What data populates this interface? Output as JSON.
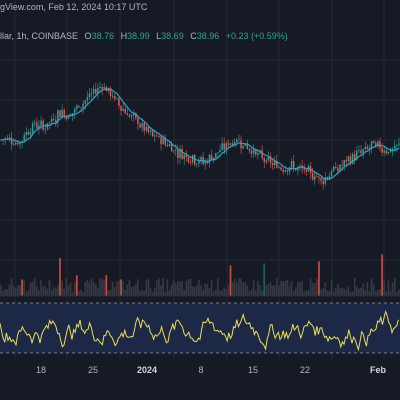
{
  "header": {
    "watermark_text": "gView.com, Feb 12, 2024 10:17 UTC",
    "symbol_text": "llar, 1h, COINBASE"
  },
  "legend": {
    "o_label": "O",
    "o_value": "38.76",
    "h_label": "H",
    "h_value": "38.99",
    "l_label": "L",
    "l_value": "38.69",
    "c_label": "C",
    "c_value": "38.96",
    "change": "+0.23 (+0.59%)"
  },
  "xaxis": {
    "ticks": [
      "18",
      "25",
      "2024",
      "8",
      "15",
      "22",
      "Feb"
    ]
  },
  "colors": {
    "background": "#161a25",
    "grid": "#232834",
    "up": "#26a69a",
    "down": "#ef5350",
    "ma_line": "#2ca4c8",
    "volume_bar": "#3a3f4a",
    "volume_spike": "#ef5350",
    "oscillator": "#e8df52",
    "osc_band": "#1e2a4a",
    "osc_bound": "#9598a1"
  },
  "chart_data": {
    "type": "candlestick",
    "interval": "1h",
    "exchange": "COINBASE",
    "last_bar": {
      "open": 38.76,
      "high": 38.99,
      "low": 38.69,
      "close": 38.96,
      "change": 0.23,
      "change_pct": 0.59
    },
    "x_tick_labels": [
      "18",
      "25",
      "2024",
      "8",
      "15",
      "22",
      "Feb"
    ],
    "price_path_norm": [
      0.5,
      0.52,
      0.47,
      0.55,
      0.6,
      0.58,
      0.62,
      0.68,
      0.65,
      0.7,
      0.75,
      0.8,
      0.85,
      0.78,
      0.72,
      0.66,
      0.62,
      0.56,
      0.52,
      0.5,
      0.46,
      0.42,
      0.4,
      0.38,
      0.36,
      0.4,
      0.44,
      0.48,
      0.5,
      0.46,
      0.42,
      0.38,
      0.35,
      0.33,
      0.34,
      0.32,
      0.3,
      0.28,
      0.25,
      0.3,
      0.33,
      0.37,
      0.41,
      0.44,
      0.47,
      0.45,
      0.43,
      0.46
    ],
    "oscillator": {
      "upper_band": 70,
      "lower_band": 30,
      "range": [
        0,
        100
      ]
    }
  }
}
